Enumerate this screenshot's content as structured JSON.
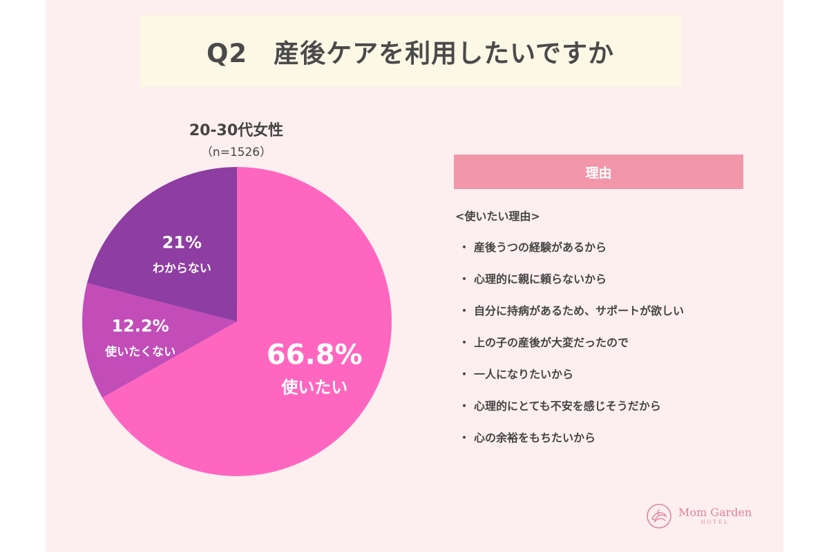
{
  "title": "Q2　産後ケアを利用したいですか",
  "chart_data": {
    "type": "pie",
    "title": "20-30代女性",
    "subtitle": "（n=1526）",
    "slices": [
      {
        "label": "使いたい",
        "value": 66.8,
        "value_label": "66.8%",
        "color": "#ff66c0"
      },
      {
        "label": "使いたくない",
        "value": 12.2,
        "value_label": "12.2%",
        "color": "#c24cb8"
      },
      {
        "label": "わからない",
        "value": 21,
        "value_label": "21%",
        "color": "#8e3da2"
      }
    ]
  },
  "reasons": {
    "header": "理由",
    "heading": "<使いたい理由>",
    "bullet": "・",
    "items": [
      "産後うつの経験があるから",
      "心理的に親に頼らないから",
      "自分に持病があるため、サポートが欲しい",
      "上の子の産後が大変だったので",
      "一人になりたいから",
      "心理的にとても不安を感じそうだから",
      "心の余裕をもちたいから"
    ]
  },
  "logo": {
    "name": "Mom Garden",
    "sub": "HOTEL"
  },
  "colors": {
    "background": "#fdeff0",
    "title_box": "#fbf8e6",
    "reason_header": "#f296a9",
    "logo": "#e1829b"
  }
}
